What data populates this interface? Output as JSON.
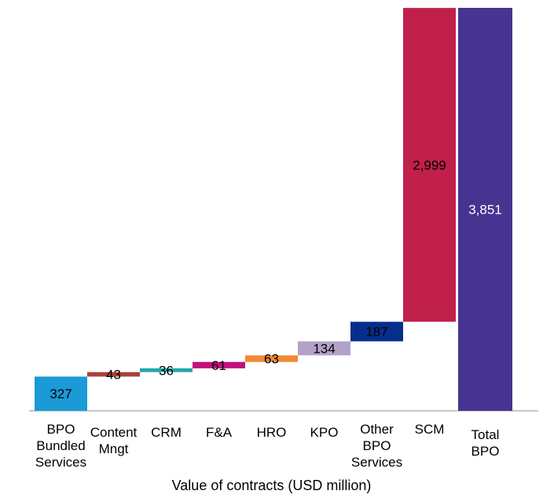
{
  "chart_data": {
    "type": "bar",
    "subtype": "waterfall",
    "xlabel": "Value of contracts (USD million)",
    "categories": [
      "BPO\nBundled\nServices",
      "Content\nMngt",
      "CRM",
      "F&A",
      "HRO",
      "KPO",
      "Other\nBPO\nServices",
      "SCM",
      "Total\nBPO"
    ],
    "values": [
      327,
      43,
      36,
      61,
      63,
      134,
      187,
      2999,
      3851
    ],
    "value_labels": [
      "327",
      "43",
      "36",
      "61",
      "63",
      "134",
      "187",
      "2,999",
      "3,851"
    ],
    "colors": [
      "#1a9ad6",
      "#a8413b",
      "#24a7a6",
      "#c2117d",
      "#f08a34",
      "#b3a2c8",
      "#062e8c",
      "#c0204a",
      "#473491"
    ],
    "label_colors": [
      "#000000",
      "#000000",
      "#000000",
      "#000000",
      "#000000",
      "#000000",
      "#000000",
      "#000000",
      "#ffffff"
    ],
    "ylim": [
      0,
      3851
    ],
    "grid": false,
    "legend": "none"
  }
}
